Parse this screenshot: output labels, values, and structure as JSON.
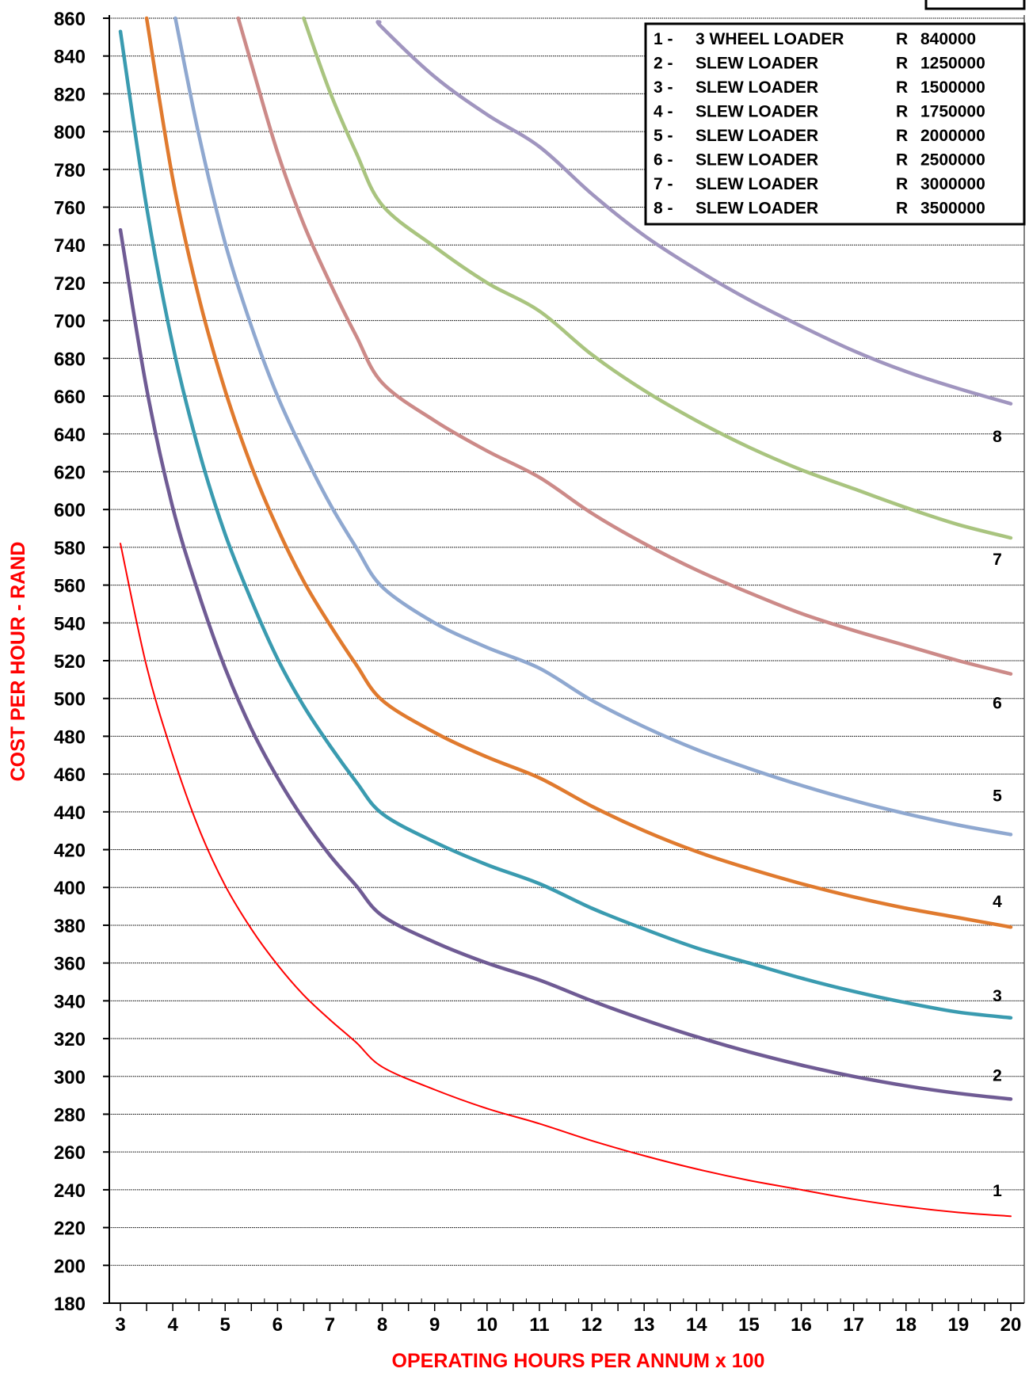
{
  "chart_data": {
    "type": "line",
    "title": "",
    "xlabel": "OPERATING HOURS PER ANNUM x 100",
    "ylabel": "COST PER HOUR - RAND",
    "xlim": [
      3,
      20
    ],
    "ylim": [
      180,
      860
    ],
    "x_ticks": [
      "3",
      "4",
      "5",
      "6",
      "7",
      "8",
      "9",
      "10",
      "11",
      "12",
      "13",
      "14",
      "15",
      "16",
      "17",
      "18",
      "19",
      "20"
    ],
    "y_ticks": [
      "180",
      "200",
      "220",
      "240",
      "260",
      "280",
      "300",
      "320",
      "340",
      "360",
      "380",
      "400",
      "420",
      "440",
      "460",
      "480",
      "500",
      "520",
      "540",
      "560",
      "580",
      "600",
      "620",
      "640",
      "660",
      "680",
      "700",
      "720",
      "740",
      "760",
      "780",
      "800",
      "820",
      "840",
      "860"
    ],
    "grid": "horizontal",
    "legend_placement": "top-right",
    "legend": [
      {
        "num": "1 -",
        "name": "3 WHEEL LOADER",
        "cur": "R",
        "price": "840000"
      },
      {
        "num": "2 -",
        "name": "SLEW LOADER",
        "cur": "R",
        "price": "1250000"
      },
      {
        "num": "3 -",
        "name": "SLEW LOADER",
        "cur": "R",
        "price": "1500000"
      },
      {
        "num": "4 -",
        "name": "SLEW LOADER",
        "cur": "R",
        "price": "1750000"
      },
      {
        "num": "5 -",
        "name": "SLEW LOADER",
        "cur": "R",
        "price": "2000000"
      },
      {
        "num": "6 -",
        "name": "SLEW LOADER",
        "cur": "R",
        "price": "2500000"
      },
      {
        "num": "7 -",
        "name": "SLEW LOADER",
        "cur": "R",
        "price": "3000000"
      },
      {
        "num": "8 -",
        "name": "SLEW LOADER",
        "cur": "R",
        "price": "3500000"
      }
    ],
    "series": [
      {
        "label": "1",
        "color": "#ff0000",
        "thin": true,
        "x": [
          3,
          3.5,
          4,
          4.5,
          5,
          5.5,
          6,
          6.5,
          7,
          7.5,
          8,
          9,
          10,
          11,
          12,
          13,
          14,
          15,
          16,
          17,
          18,
          19,
          20
        ],
        "y": [
          582,
          517,
          470,
          431,
          401,
          378,
          359,
          343,
          330,
          318,
          305,
          293,
          283,
          275,
          266,
          258,
          251,
          245,
          240,
          235,
          231,
          228,
          226
        ]
      },
      {
        "label": "2",
        "color": "#6f5b94",
        "x": [
          3,
          3.5,
          4,
          4.5,
          5,
          5.5,
          6,
          6.5,
          7,
          7.5,
          8,
          9,
          10,
          11,
          12,
          13,
          14,
          15,
          16,
          17,
          18,
          19,
          20
        ],
        "y": [
          748,
          664,
          601,
          555,
          516,
          484,
          458,
          436,
          417,
          401,
          385,
          371,
          360,
          351,
          340,
          330,
          321,
          313,
          306,
          300,
          295,
          291,
          288
        ]
      },
      {
        "label": "3",
        "color": "#3a9bb0",
        "x": [
          3,
          3.5,
          4,
          4.5,
          5,
          5.5,
          6,
          6.5,
          7,
          7.5,
          8,
          9,
          10,
          11,
          12,
          13,
          14,
          15,
          16,
          17,
          18,
          19,
          20
        ],
        "y": [
          853,
          760,
          687,
          631,
          587,
          552,
          521,
          496,
          475,
          456,
          439,
          424,
          412,
          402,
          389,
          378,
          368,
          360,
          352,
          345,
          339,
          334,
          331
        ]
      },
      {
        "label": "4",
        "color": "#e07a2e",
        "x": [
          3.5,
          4,
          4.5,
          5,
          5.5,
          6,
          6.5,
          7,
          7.5,
          8,
          9,
          10,
          11,
          12,
          13,
          14,
          15,
          16,
          17,
          18,
          19,
          20
        ],
        "y": [
          860,
          775,
          712,
          663,
          623,
          590,
          562,
          539,
          518,
          499,
          482,
          469,
          458,
          443,
          430,
          419,
          410,
          402,
          395,
          389,
          384,
          379
        ]
      },
      {
        "label": "5",
        "color": "#8fa8d0",
        "x": [
          4.05,
          4.5,
          5,
          5.5,
          6,
          6.5,
          7,
          7.5,
          8,
          9,
          10,
          11,
          12,
          13,
          14,
          15,
          16,
          17,
          18,
          19,
          20
        ],
        "y": [
          860,
          798,
          741,
          697,
          660,
          630,
          603,
          580,
          559,
          540,
          527,
          516,
          499,
          485,
          473,
          463,
          454,
          446,
          439,
          433,
          428
        ]
      },
      {
        "label": "6",
        "color": "#cc8a88",
        "x": [
          5.25,
          5.5,
          6,
          6.5,
          7,
          7.5,
          8,
          9,
          10,
          11,
          12,
          13,
          14,
          15,
          16,
          17,
          18,
          19,
          20
        ],
        "y": [
          860,
          836,
          789,
          751,
          720,
          692,
          667,
          647,
          631,
          617,
          598,
          582,
          568,
          556,
          545,
          536,
          528,
          520,
          513
        ]
      },
      {
        "label": "7",
        "color": "#a9c47f",
        "x": [
          6.5,
          7,
          7.5,
          8,
          9,
          10,
          11,
          12,
          13,
          14,
          15,
          16,
          17,
          18,
          19,
          20
        ],
        "y": [
          860,
          821,
          789,
          761,
          739,
          720,
          705,
          682,
          663,
          647,
          633,
          621,
          611,
          601,
          592,
          585
        ]
      },
      {
        "label": "8",
        "color": "#a095bf",
        "x": [
          7.95,
          8,
          9,
          10,
          11,
          12,
          13,
          14,
          15,
          16,
          17,
          18,
          19,
          20
        ],
        "y": [
          858,
          855,
          829,
          809,
          792,
          767,
          745,
          727,
          711,
          697,
          684,
          673,
          664,
          656
        ]
      }
    ],
    "end_labels": [
      {
        "text": "1",
        "y": 240
      },
      {
        "text": "2",
        "y": 301
      },
      {
        "text": "3",
        "y": 343
      },
      {
        "text": "4",
        "y": 393
      },
      {
        "text": "5",
        "y": 449
      },
      {
        "text": "6",
        "y": 498
      },
      {
        "text": "7",
        "y": 574
      },
      {
        "text": "8",
        "y": 639
      }
    ],
    "colors": {
      "axis_title": "#ff0000",
      "grid": "#000000",
      "background": "#ffffff"
    }
  }
}
